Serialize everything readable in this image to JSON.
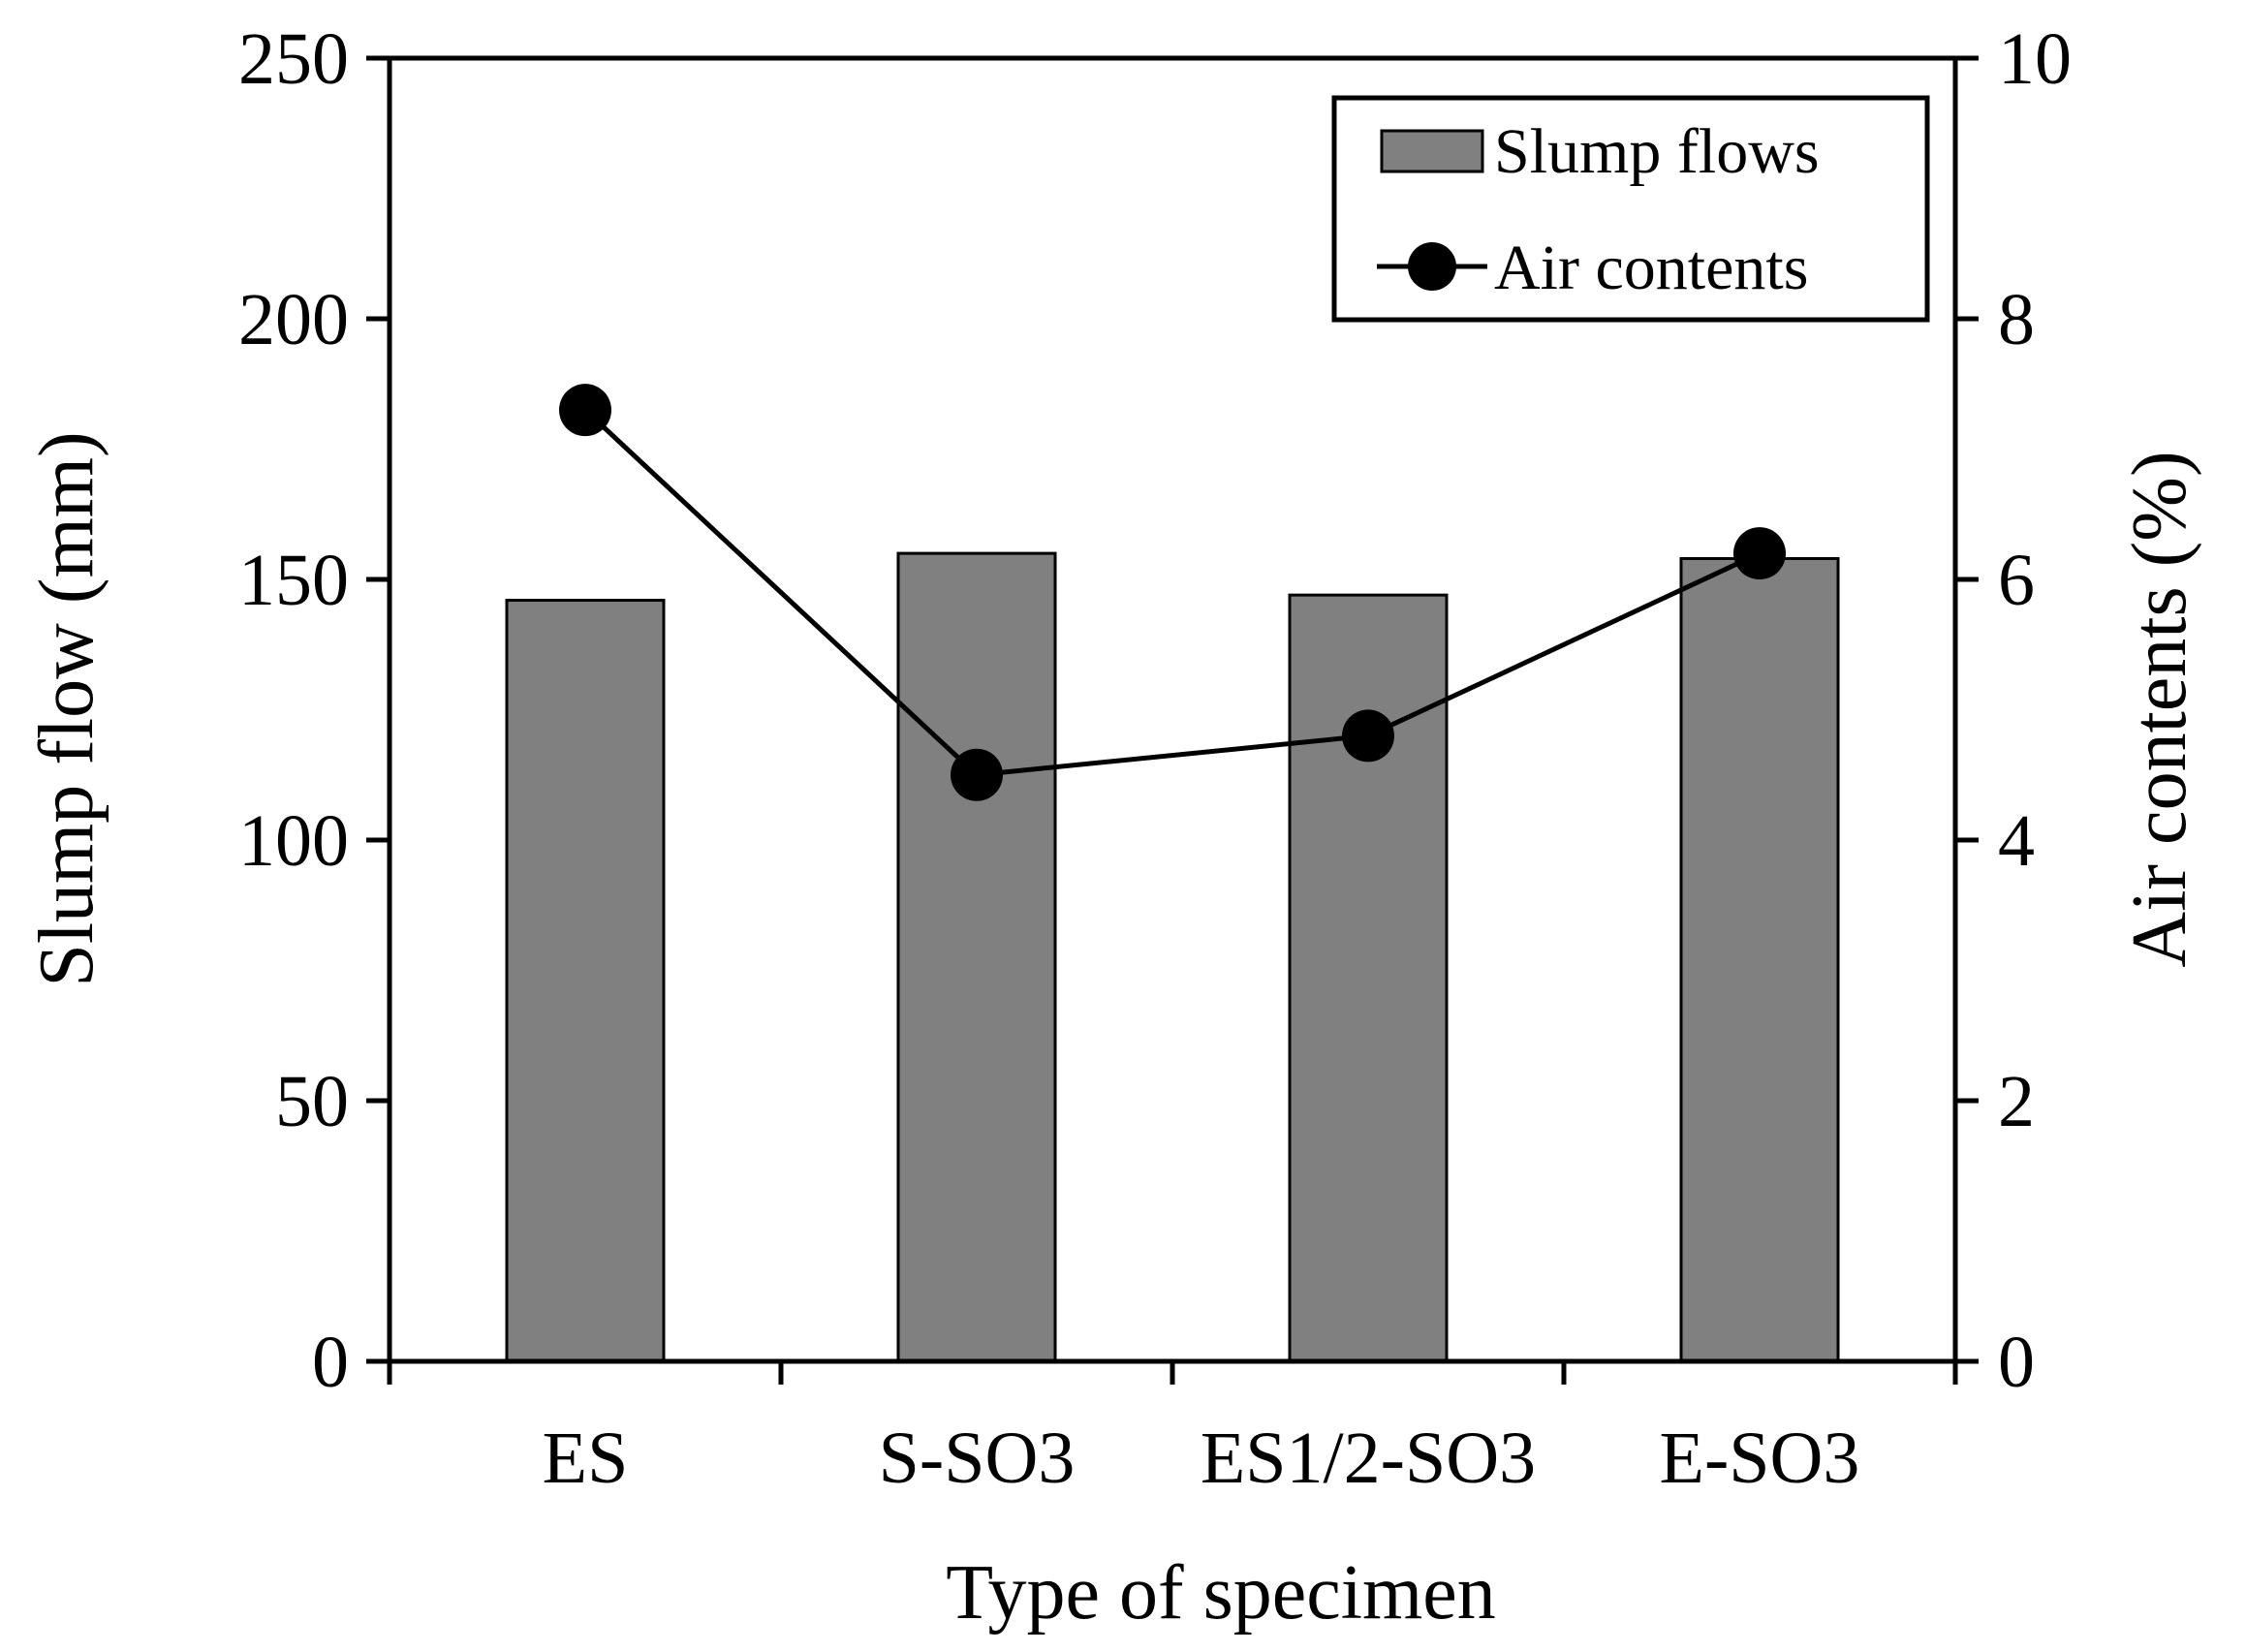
{
  "chart_data": {
    "type": "bar",
    "categories": [
      "ES",
      "S-SO3",
      "ES1/2-SO3",
      "E-SO3"
    ],
    "series": [
      {
        "name": "Slump flows",
        "kind": "bar",
        "axis": "left",
        "values": [
          146,
          155,
          147,
          154
        ]
      },
      {
        "name": "Air contents",
        "kind": "line",
        "axis": "right",
        "values": [
          7.3,
          4.5,
          4.8,
          6.2
        ]
      }
    ],
    "xlabel": "Type of specimen",
    "ylabel": "Slump flow (mm)",
    "y2label": "Air contents (%)",
    "ylim": [
      0,
      250
    ],
    "y2lim": [
      0,
      10
    ],
    "yticks": [
      "0",
      "50",
      "100",
      "150",
      "200",
      "250"
    ],
    "y2ticks": [
      "0",
      "2",
      "4",
      "6",
      "8",
      "10"
    ],
    "legend_position": "top-right",
    "colors": {
      "bar": "#808080",
      "line": "#000000",
      "axis": "#000000"
    }
  }
}
